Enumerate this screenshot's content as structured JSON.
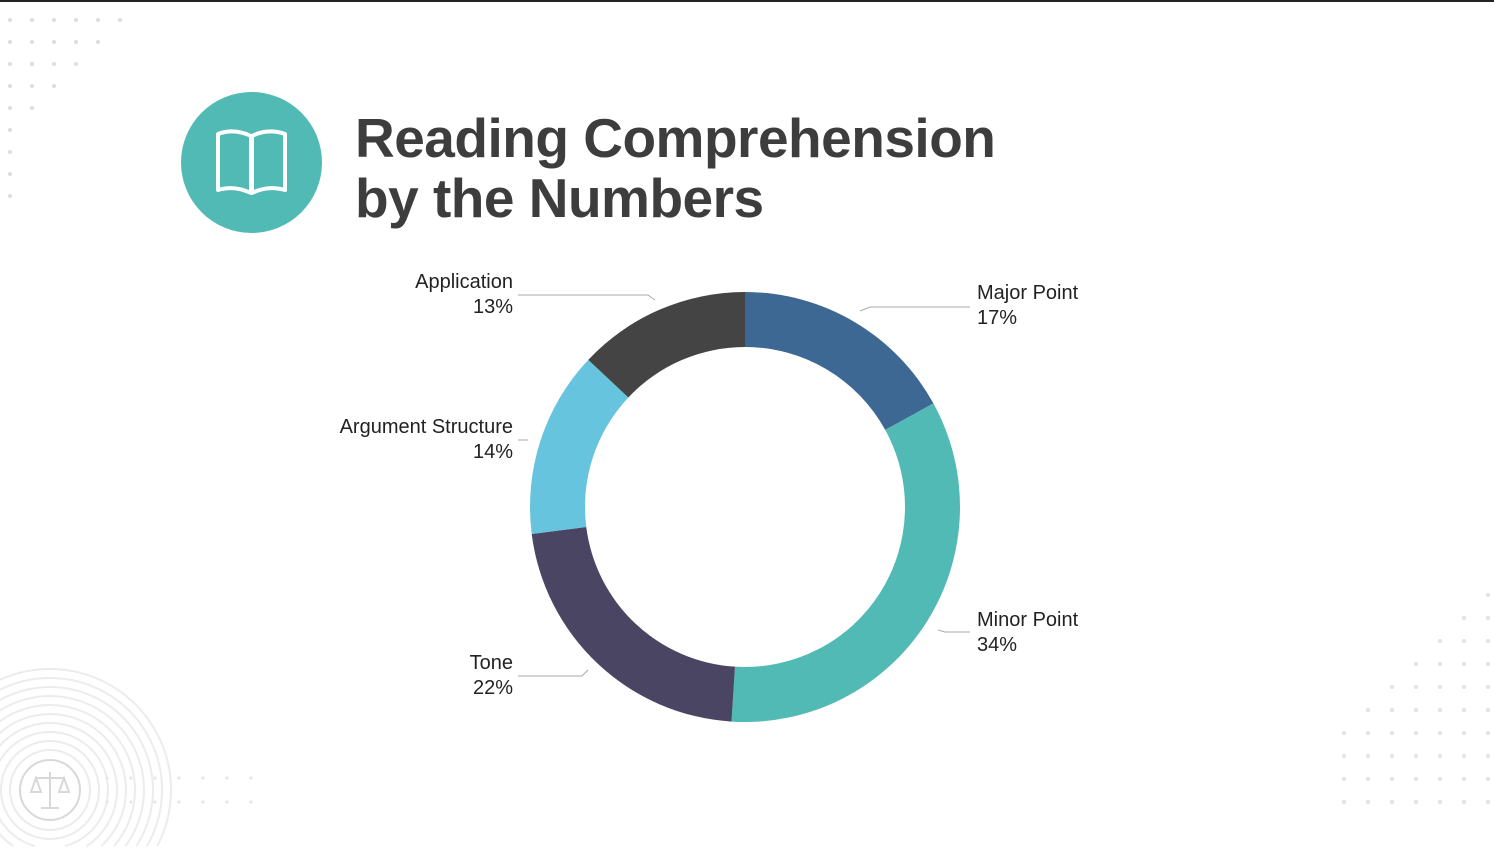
{
  "title_lines": [
    "Reading Comprehension",
    "by the Numbers"
  ],
  "icon": {
    "name": "open-book-icon",
    "color": "#52bab5"
  },
  "decorations": {
    "bottom_left_icon": "scales-of-justice-icon"
  },
  "chart_data": {
    "type": "pie",
    "donut": true,
    "start": "top",
    "direction": "clockwise",
    "title": "Reading Comprehension by the Numbers",
    "categories": [
      "Major Point",
      "Minor Point",
      "Tone",
      "Argument Structure",
      "Application"
    ],
    "values": [
      17,
      34,
      22,
      14,
      13
    ],
    "labels": [
      "17%",
      "34%",
      "22%",
      "14%",
      "13%"
    ],
    "colors": [
      "#3d6893",
      "#52bab5",
      "#4a4562",
      "#66c4de",
      "#444444"
    ]
  }
}
